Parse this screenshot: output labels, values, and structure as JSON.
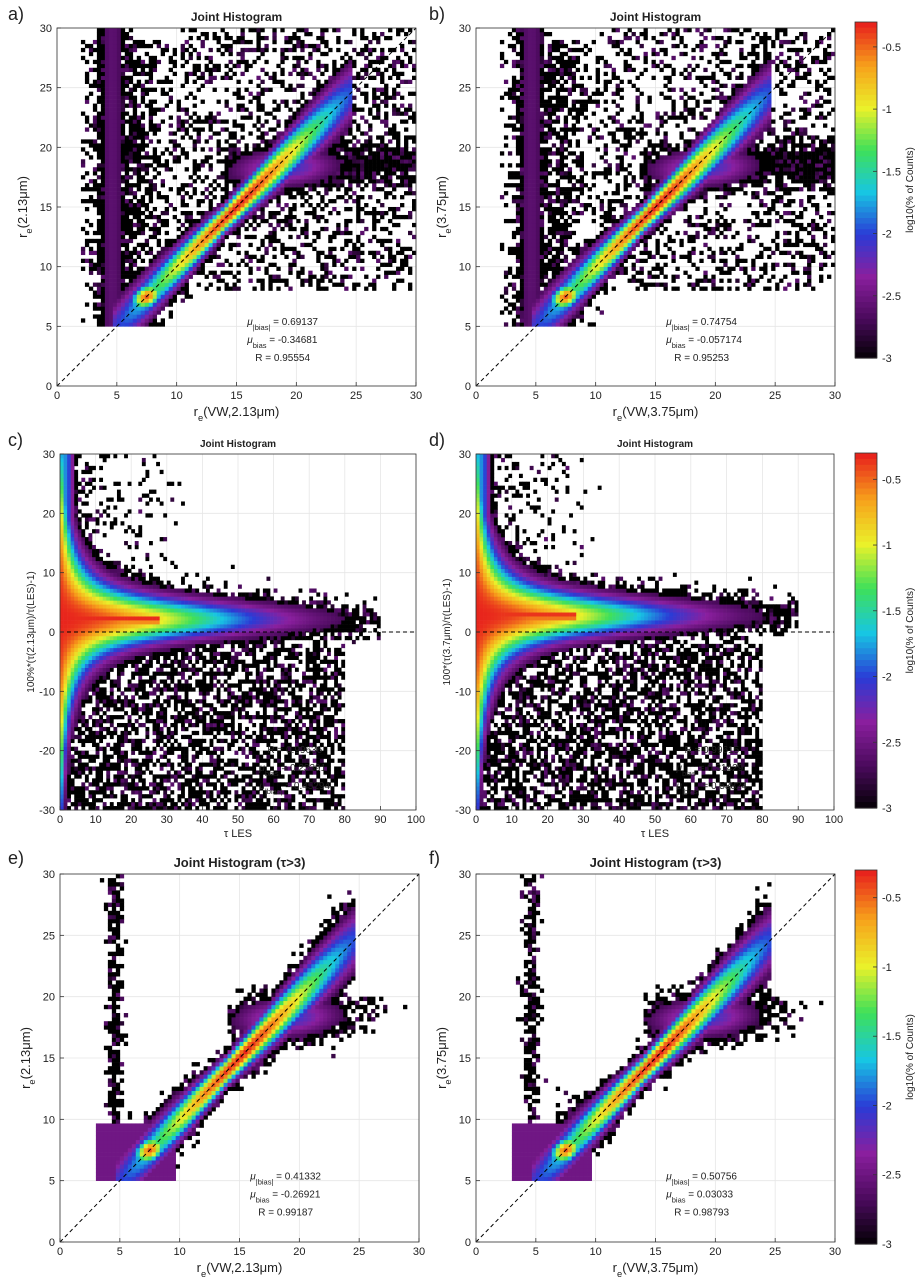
{
  "figure": {
    "colorbar_label": "log10(% of Counts)",
    "colorbar_ticks": [
      "-0.5",
      "-1",
      "-1.5",
      "-2",
      "-2.5",
      "-3"
    ],
    "colorbar_values": [
      -0.5,
      -1,
      -1.5,
      -2,
      -2.5,
      -3
    ],
    "colormap": [
      "#000000",
      "#4a0a5c",
      "#8a1f9e",
      "#2a3bd6",
      "#17c6e3",
      "#3ee05a",
      "#eaf12a",
      "#f7a21b",
      "#e8241c"
    ]
  },
  "chart_data": [
    {
      "type": "heatmap",
      "panel": "a)",
      "title": "Joint Histogram",
      "xlabel": "r_e(VW,2.13μm)",
      "ylabel": "r_e(2.13μm)",
      "xlim": [
        0,
        30
      ],
      "ylim": [
        0,
        30
      ],
      "xticks": [
        "0",
        "5",
        "10",
        "15",
        "20",
        "25",
        "30"
      ],
      "yticks": [
        "0",
        "5",
        "10",
        "15",
        "20",
        "25",
        "30"
      ],
      "grid": true,
      "one_to_one_line": true,
      "stats": [
        "μ|bias| = 0.69137",
        "μbias = -0.34681",
        "R = 0.95554"
      ],
      "stats_position": "bottom-right"
    },
    {
      "type": "heatmap",
      "panel": "b)",
      "title": "Joint Histogram",
      "xlabel": "r_e(VW,3.75μm)",
      "ylabel": "r_e(3.75μm)",
      "xlim": [
        0,
        30
      ],
      "ylim": [
        0,
        30
      ],
      "xticks": [
        "0",
        "5",
        "10",
        "15",
        "20",
        "25",
        "30"
      ],
      "yticks": [
        "0",
        "5",
        "10",
        "15",
        "20",
        "25",
        "30"
      ],
      "grid": true,
      "one_to_one_line": true,
      "stats": [
        "μ|bias| = 0.74754",
        "μbias = -0.057174",
        "R = 0.95253"
      ],
      "stats_position": "bottom-right"
    },
    {
      "type": "heatmap",
      "panel": "c)",
      "title": "Joint Histogram",
      "xlabel": "τ LES",
      "ylabel": "100%*(τ(2.13μm)/τ(LES)-1)",
      "xlim": [
        0,
        100
      ],
      "ylim": [
        -30,
        30
      ],
      "xticks": [
        "0",
        "10",
        "20",
        "30",
        "40",
        "50",
        "60",
        "70",
        "80",
        "90",
        "100"
      ],
      "yticks": [
        "-30",
        "-20",
        "-10",
        "0",
        "10",
        "20",
        "30"
      ],
      "grid": true,
      "zero_line": true,
      "stats": [
        "R = 0.99636",
        "μbias = 0.23391",
        "μ|bias| = 0.45294"
      ],
      "stats_position": "bottom-center"
    },
    {
      "type": "heatmap",
      "panel": "d)",
      "title": "Joint Histogram",
      "xlabel": "τ LES",
      "ylabel": "100*(τ(3.7μm)/τ(LES)-1)",
      "xlim": [
        0,
        100
      ],
      "ylim": [
        -30,
        30
      ],
      "xticks": [
        "0",
        "10",
        "20",
        "30",
        "40",
        "50",
        "60",
        "70",
        "80",
        "90",
        "100"
      ],
      "yticks": [
        "-30",
        "-20",
        "-10",
        "0",
        "10",
        "20",
        "30"
      ],
      "grid": true,
      "zero_line": true,
      "stats": [
        "R = 0.99615",
        "μbias = 0.31429",
        "μ|bias| = 0.53824"
      ],
      "stats_position": "bottom-center"
    },
    {
      "type": "heatmap",
      "panel": "e)",
      "title": "Joint Histogram (τ>3)",
      "xlabel": "r_e(VW,2.13μm)",
      "ylabel": "r_e(2.13μm)",
      "xlim": [
        0,
        30
      ],
      "ylim": [
        0,
        30
      ],
      "xticks": [
        "0",
        "5",
        "10",
        "15",
        "20",
        "25",
        "30"
      ],
      "yticks": [
        "0",
        "5",
        "10",
        "15",
        "20",
        "25",
        "30"
      ],
      "grid": true,
      "one_to_one_line": true,
      "stats": [
        "μ|bias| = 0.41332",
        "μbias = -0.26921",
        "R = 0.99187"
      ],
      "stats_position": "bottom-right"
    },
    {
      "type": "heatmap",
      "panel": "f)",
      "title": "Joint Histogram (τ>3)",
      "xlabel": "r_e(VW,3.75μm)",
      "ylabel": "r_e(3.75μm)",
      "xlim": [
        0,
        30
      ],
      "ylim": [
        0,
        30
      ],
      "xticks": [
        "0",
        "5",
        "10",
        "15",
        "20",
        "25",
        "30"
      ],
      "yticks": [
        "0",
        "5",
        "10",
        "15",
        "20",
        "25",
        "30"
      ],
      "grid": true,
      "one_to_one_line": true,
      "stats": [
        "μ|bias| = 0.50756",
        "μbias = 0.03033",
        "R = 0.98793"
      ],
      "stats_position": "bottom-right"
    }
  ]
}
